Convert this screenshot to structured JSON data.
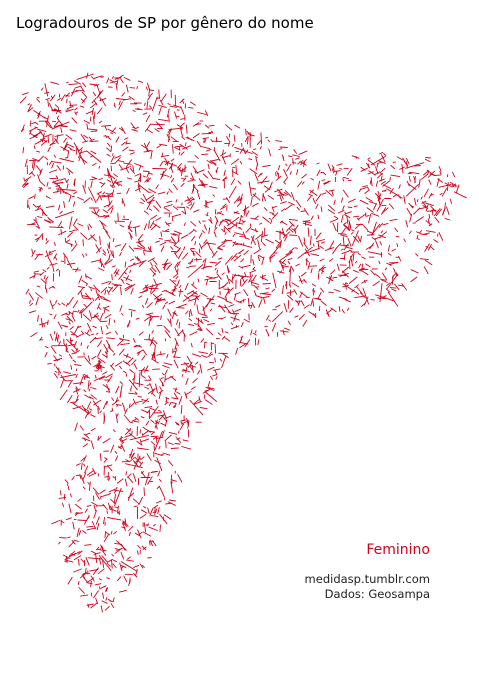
{
  "title": "Logradouros de SP por gênero do nome",
  "legend": {
    "label": "Feminino",
    "color": "#d0021b"
  },
  "credits": {
    "site": "medidasp.tumblr.com",
    "source": "Dados: Geosampa"
  },
  "colors": {
    "background": "#ffffff",
    "streets": "#d0021b",
    "text": "#000000"
  }
}
